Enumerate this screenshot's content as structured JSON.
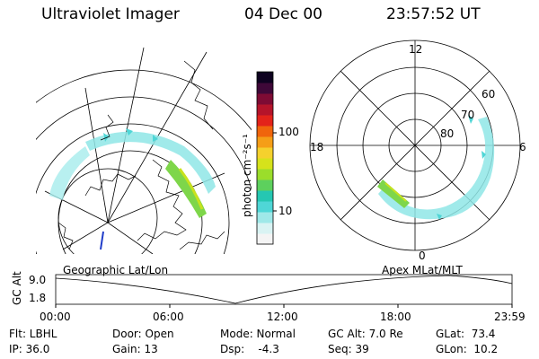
{
  "header": {
    "instrument": "Ultraviolet Imager",
    "date": "04 Dec 00",
    "time": "23:57:52 UT"
  },
  "left_panel": {
    "label": "Geographic Lat/Lon"
  },
  "right_panel": {
    "label": "Apex MLat/MLT",
    "mlt_labels": [
      "12",
      "18",
      "6",
      "0"
    ],
    "lat_labels": [
      "60",
      "70",
      "80"
    ]
  },
  "colorbar": {
    "unit_label": "photon cm⁻²s⁻¹",
    "ticks": [
      "100",
      "10"
    ],
    "colors": [
      "#f4f4f4",
      "#d9f3f3",
      "#9fe8e8",
      "#4fd6d6",
      "#25c7b2",
      "#5dd05d",
      "#9bdd2b",
      "#d6e21b",
      "#f5d12d",
      "#f59e17",
      "#f0650c",
      "#e3231a",
      "#b5142a",
      "#7e0b34",
      "#3e0838",
      "#0e0220"
    ]
  },
  "altitude_plot": {
    "ylabel": "GC Alt",
    "yticks": [
      "9.0",
      "1.8"
    ],
    "xticks": [
      "00:00",
      "06:00",
      "12:00",
      "18:00",
      "23:59"
    ]
  },
  "footer": {
    "filter": "Flt: LBHL",
    "ip": "IP: 36.0",
    "door": "Door: Open",
    "gain": "Gain: 13",
    "mode": "Mode: Normal",
    "dsp": "Dsp:    -4.3",
    "gc_alt": "GC Alt: 7.0 Re",
    "seq": "Seq: 39",
    "glat": "GLat:  73.4",
    "glon": "GLon:  10.2"
  }
}
